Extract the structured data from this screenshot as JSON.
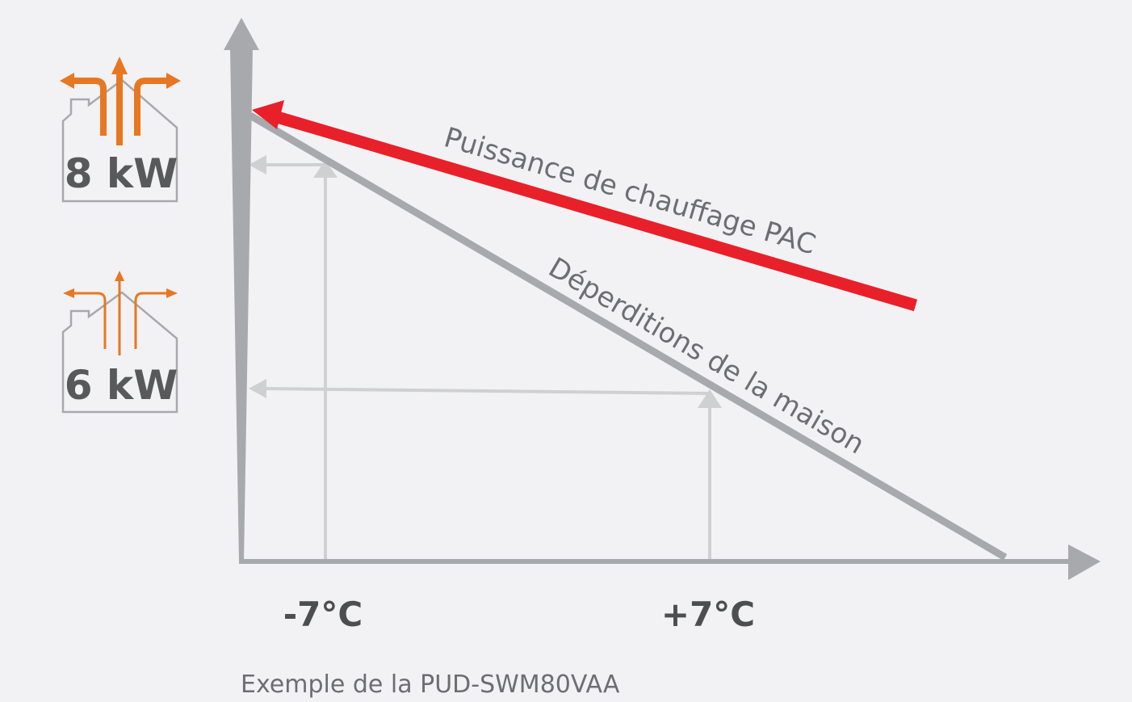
{
  "houses": [
    {
      "power_label": "8 kW",
      "icon": "house-heat-arrows-large-icon"
    },
    {
      "power_label": "6 kW",
      "icon": "house-heat-arrows-small-icon"
    }
  ],
  "axes": {
    "x_ticks": [
      "-7°C",
      "+7°C"
    ]
  },
  "lines": {
    "heat_pump": {
      "label": "Puissance de chauffage PAC",
      "color": "#e8202a"
    },
    "house_loss": {
      "label": "Déperditions de la maison",
      "color": "#a7a9ac"
    }
  },
  "guide_color": "#cfd0d2",
  "axis_color": "#a7a9ac",
  "icon_color": "#e87722",
  "caption": "Exemple de la PUD-SWM80VAA"
}
